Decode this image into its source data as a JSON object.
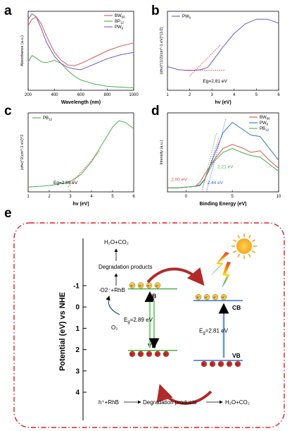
{
  "panel_labels": [
    "a",
    "b",
    "c",
    "d",
    "e"
  ],
  "chart_data": [
    {
      "type": "line",
      "panel": "a",
      "xlabel": "Wavelength (nm)",
      "ylabel": "Absorbance (a.u.)",
      "x_ticks": [
        "200",
        "400",
        "600",
        "800",
        "1000"
      ],
      "xlim": [
        200,
        1000
      ],
      "legend_position": "top-right",
      "series": [
        {
          "name": "BW66",
          "label_main": "BW",
          "label_sub": "66",
          "color": "#d9534f",
          "x": [
            200,
            230,
            260,
            300,
            340,
            400,
            450,
            500,
            550,
            600,
            700,
            800,
            900,
            1000
          ],
          "values": [
            0.82,
            0.9,
            0.93,
            0.84,
            0.68,
            0.48,
            0.38,
            0.32,
            0.31,
            0.34,
            0.42,
            0.5,
            0.56,
            0.6
          ]
        },
        {
          "name": "BP12",
          "label_main": "BP",
          "label_sub": "12",
          "color": "#4cae4c",
          "x": [
            200,
            230,
            260,
            300,
            340,
            400,
            450,
            500,
            550,
            600,
            700,
            800,
            900,
            1000
          ],
          "values": [
            0.36,
            0.44,
            0.41,
            0.36,
            0.35,
            0.38,
            0.34,
            0.25,
            0.18,
            0.13,
            0.08,
            0.05,
            0.04,
            0.03
          ]
        },
        {
          "name": "PW6",
          "label_main": "PW",
          "label_sub": "6",
          "color": "#6a5acd",
          "x": [
            200,
            230,
            260,
            300,
            340,
            400,
            450,
            500,
            550,
            600,
            700,
            800,
            900,
            1000
          ],
          "values": [
            0.9,
            0.97,
            0.93,
            0.78,
            0.6,
            0.43,
            0.34,
            0.29,
            0.27,
            0.26,
            0.33,
            0.4,
            0.45,
            0.48
          ]
        }
      ]
    },
    {
      "type": "line",
      "panel": "b",
      "xlabel": "hv (eV)",
      "ylabel": "(αhv)^(1/2)(cm^-1 eV)^(1/2)",
      "x_ticks": [
        "1",
        "2",
        "3",
        "4",
        "5",
        "6"
      ],
      "xlim": [
        1,
        6
      ],
      "legend_position": "top-left",
      "annotation": "Eg=2.81 eV",
      "series": [
        {
          "name": "PW6",
          "label_main": "PW",
          "label_sub": "6",
          "color": "#6a5acd",
          "x": [
            1,
            1.5,
            2,
            2.5,
            2.81,
            3,
            3.5,
            4,
            4.5,
            5,
            5.5,
            6
          ],
          "values": [
            0.3,
            0.26,
            0.25,
            0.26,
            0.29,
            0.36,
            0.55,
            0.72,
            0.84,
            0.9,
            0.9,
            0.85
          ]
        }
      ]
    },
    {
      "type": "line",
      "panel": "c",
      "xlabel": "hv (eV)",
      "ylabel": "(αhv)^2(cm^-1 eV)^2",
      "x_ticks": [
        "1",
        "2",
        "3",
        "4",
        "5",
        "6"
      ],
      "xlim": [
        1,
        6
      ],
      "legend_position": "top-left",
      "annotation": "Eg=2.89 eV",
      "series": [
        {
          "name": "PB12",
          "label_main": "PB",
          "label_sub": "12",
          "color": "#4cae4c",
          "x": [
            1,
            1.5,
            2,
            2.5,
            3,
            3.5,
            4,
            4.5,
            5,
            5.3,
            5.6,
            6
          ],
          "values": [
            0.06,
            0.07,
            0.08,
            0.1,
            0.13,
            0.22,
            0.38,
            0.6,
            0.82,
            0.9,
            0.88,
            0.8
          ]
        }
      ]
    },
    {
      "type": "line",
      "panel": "d",
      "xlabel": "Binding Energy (eV)",
      "ylabel": "Intensity (a.u.)",
      "x_ticks": [
        "0",
        "5",
        "10"
      ],
      "xlim": [
        -2,
        10
      ],
      "legend_position": "top-right",
      "annotations": [
        {
          "text": "2.00 eV",
          "color": "#d9534f"
        },
        {
          "text": "2.21 eV",
          "color": "#4cae4c"
        },
        {
          "text": "2.44 eV",
          "color": "#3a6fd8"
        }
      ],
      "series": [
        {
          "name": "BW66",
          "label_main": "BW",
          "label_sub": "66",
          "color": "#d9534f",
          "x": [
            -2,
            -1,
            0,
            1,
            1.5,
            2,
            3,
            4,
            5,
            6,
            7,
            8,
            9,
            10
          ],
          "values": [
            0.05,
            0.05,
            0.06,
            0.07,
            0.12,
            0.22,
            0.4,
            0.55,
            0.6,
            0.56,
            0.5,
            0.52,
            0.4,
            0.3
          ]
        },
        {
          "name": "PW6",
          "label_main": "PW",
          "label_sub": "6",
          "color": "#3a6fd8",
          "x": [
            -2,
            -1,
            0,
            1,
            1.5,
            2,
            3,
            4,
            5,
            6,
            7,
            8,
            9,
            10
          ],
          "values": [
            0.05,
            0.05,
            0.06,
            0.07,
            0.08,
            0.15,
            0.45,
            0.75,
            0.88,
            0.8,
            0.72,
            0.7,
            0.55,
            0.4
          ]
        },
        {
          "name": "PB12",
          "label_main": "PB",
          "label_sub": "12",
          "color": "#4cae4c",
          "x": [
            -2,
            -1,
            0,
            1,
            1.5,
            2,
            3,
            4,
            5,
            6,
            7,
            8,
            9,
            10
          ],
          "values": [
            0.05,
            0.05,
            0.06,
            0.07,
            0.09,
            0.16,
            0.38,
            0.5,
            0.55,
            0.5,
            0.46,
            0.44,
            0.35,
            0.26
          ]
        }
      ]
    }
  ],
  "schematic": {
    "yaxis_label": "Potential (eV) vs NHE",
    "y_ticks": [
      "-1",
      "0",
      "1",
      "2",
      "3",
      "4"
    ],
    "left_semiconductor": {
      "cb_label": "CB",
      "vb_label": "VB",
      "eg_main": "E",
      "eg_sub": "g",
      "eg_value": "=2.89 eV",
      "color": "#4cae4c",
      "cb_potential": -0.85,
      "vb_potential": 2.04
    },
    "right_semiconductor": {
      "cb_label": "CB",
      "vb_label": "VB",
      "eg_main": "E",
      "eg_sub": "g",
      "eg_value": "=2.81 eV",
      "color": "#3a6fd8",
      "cb_potential": -0.3,
      "vb_potential": 2.51
    },
    "electron_symbol": "e⁻",
    "hole_symbol": "h⁺",
    "top_product": "H₂O+CO₂",
    "top_degradation": "Degradation products",
    "radical_rhb": "·O2⁻+RhB",
    "oxygen": "O₂",
    "bottom_reactant": "h⁺+RhB",
    "bottom_degradation": "Degradation products",
    "bottom_product": "H₂O+CO₂",
    "border_color": "#e02020"
  }
}
